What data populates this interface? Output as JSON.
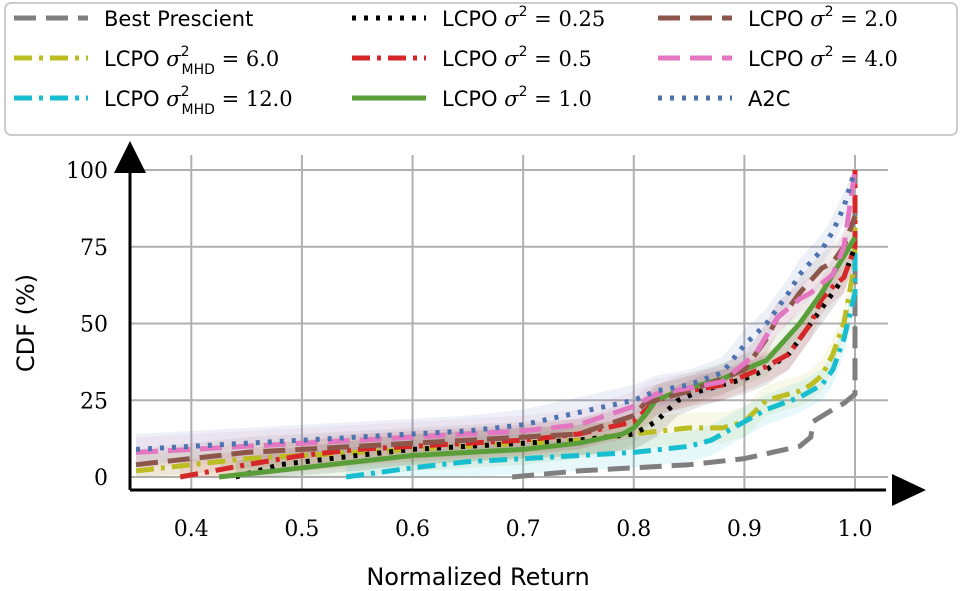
{
  "chart_data": {
    "type": "line",
    "xlabel": "Normalized Return",
    "ylabel": "CDF (%)",
    "xlim": [
      0.35,
      1.0
    ],
    "ylim": [
      0,
      100
    ],
    "x_ticks": [
      "0.4",
      "0.5",
      "0.6",
      "0.7",
      "0.8",
      "0.9",
      "1.0"
    ],
    "y_ticks": [
      "0",
      "25",
      "50",
      "75",
      "100"
    ],
    "grid": true,
    "legend_placement": "top",
    "series": [
      {
        "name": "Best Prescient",
        "color": "#7f7f7f",
        "dash": "dash",
        "points": [
          [
            0.69,
            0
          ],
          [
            0.75,
            2
          ],
          [
            0.8,
            3
          ],
          [
            0.85,
            4
          ],
          [
            0.9,
            6
          ],
          [
            0.95,
            10
          ],
          [
            0.96,
            13
          ],
          [
            0.962,
            18
          ],
          [
            0.98,
            22
          ],
          [
            0.99,
            24
          ],
          [
            1.0,
            27
          ],
          [
            1.0,
            50
          ],
          [
            1.0,
            100
          ]
        ]
      },
      {
        "name": "LCPO σ²_MHD = 6.0",
        "color": "#bcbd22",
        "dash": "dashdot",
        "points": [
          [
            0.35,
            2
          ],
          [
            0.4,
            4
          ],
          [
            0.45,
            6
          ],
          [
            0.5,
            7
          ],
          [
            0.55,
            8
          ],
          [
            0.6,
            9
          ],
          [
            0.65,
            10
          ],
          [
            0.7,
            11
          ],
          [
            0.75,
            12
          ],
          [
            0.8,
            14
          ],
          [
            0.85,
            16
          ],
          [
            0.88,
            16
          ],
          [
            0.9,
            18
          ],
          [
            0.92,
            25
          ],
          [
            0.95,
            28
          ],
          [
            0.96,
            30
          ],
          [
            0.97,
            33
          ],
          [
            0.98,
            40
          ],
          [
            0.99,
            50
          ],
          [
            1.0,
            70
          ],
          [
            1.0,
            85
          ]
        ]
      },
      {
        "name": "LCPO σ²_MHD = 12.0",
        "color": "#17becf",
        "dash": "dashdot",
        "points": [
          [
            0.54,
            0
          ],
          [
            0.6,
            3
          ],
          [
            0.65,
            5
          ],
          [
            0.7,
            6
          ],
          [
            0.75,
            7
          ],
          [
            0.8,
            8
          ],
          [
            0.85,
            10
          ],
          [
            0.87,
            12
          ],
          [
            0.9,
            18
          ],
          [
            0.92,
            22
          ],
          [
            0.95,
            26
          ],
          [
            0.97,
            30
          ],
          [
            0.98,
            35
          ],
          [
            0.99,
            45
          ],
          [
            1.0,
            60
          ],
          [
            1.0,
            75
          ]
        ]
      },
      {
        "name": "LCPO σ² = 0.25",
        "color": "#000000",
        "dash": "dot",
        "points": [
          [
            0.44,
            0
          ],
          [
            0.48,
            4
          ],
          [
            0.55,
            7
          ],
          [
            0.6,
            9
          ],
          [
            0.65,
            10
          ],
          [
            0.7,
            11
          ],
          [
            0.75,
            12
          ],
          [
            0.8,
            14
          ],
          [
            0.82,
            18
          ],
          [
            0.84,
            25
          ],
          [
            0.86,
            28
          ],
          [
            0.88,
            30
          ],
          [
            0.9,
            32
          ],
          [
            0.92,
            35
          ],
          [
            0.94,
            40
          ],
          [
            0.95,
            45
          ],
          [
            0.96,
            50
          ],
          [
            0.97,
            55
          ],
          [
            0.98,
            60
          ],
          [
            0.99,
            65
          ],
          [
            1.0,
            75
          ]
        ]
      },
      {
        "name": "LCPO σ² = 0.5",
        "color": "#d62728",
        "dash": "dashdot",
        "points": [
          [
            0.39,
            0
          ],
          [
            0.45,
            4
          ],
          [
            0.5,
            7
          ],
          [
            0.55,
            9
          ],
          [
            0.6,
            10
          ],
          [
            0.65,
            11
          ],
          [
            0.7,
            12
          ],
          [
            0.75,
            14
          ],
          [
            0.8,
            18
          ],
          [
            0.82,
            25
          ],
          [
            0.85,
            28
          ],
          [
            0.88,
            30
          ],
          [
            0.9,
            33
          ],
          [
            0.92,
            36
          ],
          [
            0.94,
            40
          ],
          [
            0.96,
            50
          ],
          [
            0.97,
            58
          ],
          [
            0.98,
            62
          ],
          [
            0.99,
            65
          ],
          [
            1.0,
            75
          ],
          [
            1.0,
            100
          ]
        ]
      },
      {
        "name": "LCPO σ² = 1.0",
        "color": "#5a9e3a",
        "dash": "solid",
        "points": [
          [
            0.425,
            0
          ],
          [
            0.45,
            1
          ],
          [
            0.5,
            3
          ],
          [
            0.55,
            5
          ],
          [
            0.6,
            7
          ],
          [
            0.65,
            8
          ],
          [
            0.7,
            9
          ],
          [
            0.75,
            11
          ],
          [
            0.79,
            14
          ],
          [
            0.8,
            16
          ],
          [
            0.81,
            20
          ],
          [
            0.82,
            25
          ],
          [
            0.84,
            28
          ],
          [
            0.86,
            30
          ],
          [
            0.88,
            32
          ],
          [
            0.9,
            35
          ],
          [
            0.92,
            38
          ],
          [
            0.93,
            42
          ],
          [
            0.94,
            46
          ],
          [
            0.95,
            50
          ],
          [
            0.96,
            55
          ],
          [
            0.97,
            60
          ],
          [
            0.98,
            66
          ],
          [
            0.99,
            72
          ],
          [
            1.0,
            78
          ]
        ]
      },
      {
        "name": "LCPO σ² = 2.0",
        "color": "#8c564b",
        "dash": "dash",
        "points": [
          [
            0.35,
            4
          ],
          [
            0.4,
            6
          ],
          [
            0.45,
            8
          ],
          [
            0.5,
            9
          ],
          [
            0.55,
            10
          ],
          [
            0.6,
            11
          ],
          [
            0.65,
            12
          ],
          [
            0.7,
            13
          ],
          [
            0.75,
            14
          ],
          [
            0.8,
            20
          ],
          [
            0.81,
            24
          ],
          [
            0.82,
            25
          ],
          [
            0.85,
            28
          ],
          [
            0.88,
            32
          ],
          [
            0.9,
            35
          ],
          [
            0.91,
            40
          ],
          [
            0.92,
            45
          ],
          [
            0.93,
            52
          ],
          [
            0.94,
            55
          ],
          [
            0.95,
            60
          ],
          [
            0.96,
            64
          ],
          [
            0.97,
            68
          ],
          [
            0.98,
            70
          ],
          [
            0.99,
            75
          ],
          [
            1.0,
            85
          ]
        ]
      },
      {
        "name": "LCPO σ² = 4.0",
        "color": "#e377c2",
        "dash": "dash",
        "points": [
          [
            0.35,
            8
          ],
          [
            0.4,
            9
          ],
          [
            0.45,
            10
          ],
          [
            0.5,
            11
          ],
          [
            0.55,
            12
          ],
          [
            0.6,
            13
          ],
          [
            0.65,
            14
          ],
          [
            0.7,
            15
          ],
          [
            0.75,
            17
          ],
          [
            0.8,
            23
          ],
          [
            0.82,
            27
          ],
          [
            0.85,
            29
          ],
          [
            0.88,
            31
          ],
          [
            0.9,
            37
          ],
          [
            0.91,
            40
          ],
          [
            0.92,
            46
          ],
          [
            0.93,
            52
          ],
          [
            0.95,
            58
          ],
          [
            0.96,
            60
          ],
          [
            0.97,
            63
          ],
          [
            0.98,
            66
          ],
          [
            0.99,
            75
          ],
          [
            1.0,
            100
          ]
        ]
      },
      {
        "name": "A2C",
        "color": "#4c72b0",
        "dash": "dot",
        "points": [
          [
            0.35,
            9
          ],
          [
            0.4,
            10
          ],
          [
            0.45,
            11
          ],
          [
            0.5,
            12
          ],
          [
            0.55,
            13
          ],
          [
            0.6,
            14
          ],
          [
            0.65,
            15
          ],
          [
            0.7,
            17
          ],
          [
            0.75,
            21
          ],
          [
            0.8,
            25
          ],
          [
            0.82,
            28
          ],
          [
            0.85,
            30
          ],
          [
            0.88,
            34
          ],
          [
            0.9,
            43
          ],
          [
            0.92,
            50
          ],
          [
            0.94,
            60
          ],
          [
            0.95,
            66
          ],
          [
            0.96,
            70
          ],
          [
            0.97,
            74
          ],
          [
            0.98,
            80
          ],
          [
            0.99,
            88
          ],
          [
            1.0,
            100
          ]
        ]
      }
    ]
  }
}
